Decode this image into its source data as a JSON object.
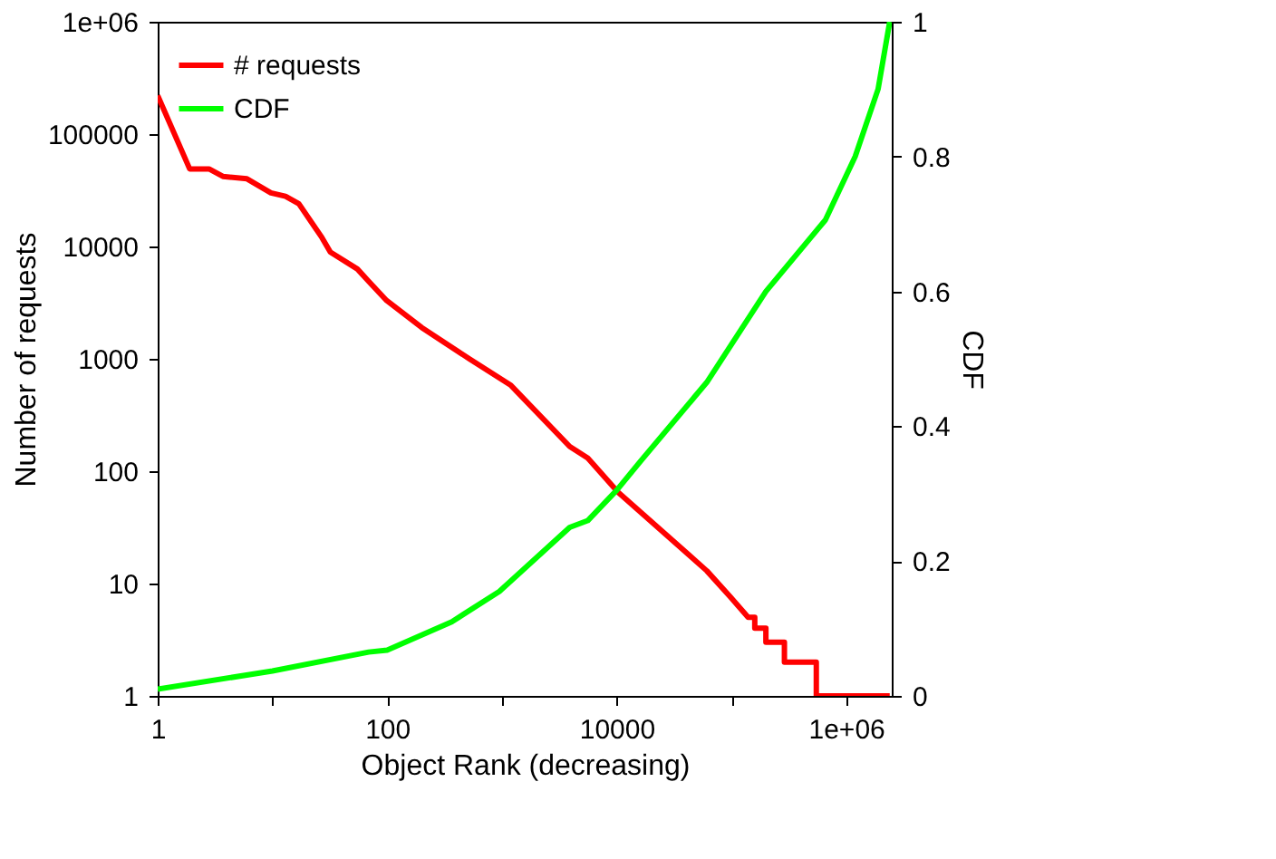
{
  "chart_data": {
    "type": "line",
    "xlabel": "Object Rank (decreasing)",
    "ylabel": "Number of requests",
    "y2label": "CDF",
    "log": "xy",
    "legend": "top left",
    "grid": false,
    "line_style": "solid",
    "marker": "none",
    "xlim": [
      1,
      2500000
    ],
    "xticks": [
      1,
      {
        "value": 10,
        "label": null
      },
      100,
      {
        "value": 1000,
        "label": null
      },
      10000,
      {
        "value": 100000,
        "label": null
      },
      {
        "value": 1000000,
        "label": "1e+06"
      }
    ],
    "ylim": [
      1,
      1000000
    ],
    "yticks": [
      1,
      10,
      100,
      1000,
      10000,
      100000,
      {
        "value": 1000000,
        "label": "1e+06"
      }
    ],
    "y2lim": [
      0,
      1
    ],
    "y2ticks": [
      0,
      0.2,
      0.4,
      0.6,
      0.8,
      1
    ],
    "series": [
      {
        "name": "# requests",
        "color": "#ff0000",
        "x": [
          1,
          1.9,
          2.8,
          3.7,
          6,
          9.7,
          13,
          17,
          27,
          32,
          55,
          69,
          99,
          200,
          520,
          1200,
          3900,
          5600,
          10300,
          61000,
          98000,
          140000,
          160000,
          160000,
          200000,
          200000,
          290000,
          290000,
          550000,
          550000,
          2400000
        ],
        "values": [
          220000,
          49000,
          49000,
          42000,
          40000,
          30000,
          28000,
          24000,
          12000,
          8900,
          6300,
          4900,
          3300,
          1900,
          1000,
          580,
          166,
          131,
          65,
          13,
          7.6,
          5,
          5,
          4,
          4,
          3,
          3,
          2,
          2,
          1,
          1
        ]
      },
      {
        "name": "CDF",
        "color": "#00ff00",
        "axis": "y2",
        "x": [
          1,
          10,
          69,
          100,
          366,
          950,
          3900,
          5600,
          10000,
          16500,
          61000,
          200000,
          660000,
          1200000,
          1900000,
          2400000
        ],
        "values": [
          0.01,
          0.037,
          0.065,
          0.068,
          0.11,
          0.155,
          0.25,
          0.26,
          0.305,
          0.35,
          0.465,
          0.6,
          0.706,
          0.8,
          0.9,
          1.0
        ]
      }
    ]
  }
}
